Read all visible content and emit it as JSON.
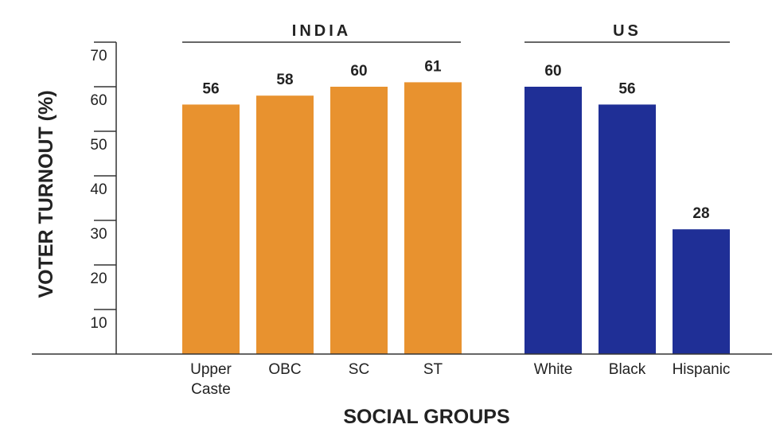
{
  "chart_data": {
    "type": "bar",
    "title": "",
    "xlabel": "SOCIAL GROUPS",
    "ylabel": "VOTER TURNOUT (%)",
    "ylim": [
      0,
      70
    ],
    "yticks": [
      10,
      20,
      30,
      40,
      50,
      60,
      70
    ],
    "grid": false,
    "groups": [
      {
        "name": "INDIA",
        "color": "#E8922F",
        "categories": [
          [
            "Upper",
            "Caste"
          ],
          [
            "OBC"
          ],
          [
            "SC"
          ],
          [
            "ST"
          ]
        ],
        "values": [
          56,
          58,
          60,
          61
        ]
      },
      {
        "name": "US",
        "color": "#1F2F96",
        "categories": [
          [
            "White"
          ],
          [
            "Black"
          ],
          [
            "Hispanic"
          ]
        ],
        "values": [
          60,
          56,
          28
        ]
      }
    ]
  }
}
